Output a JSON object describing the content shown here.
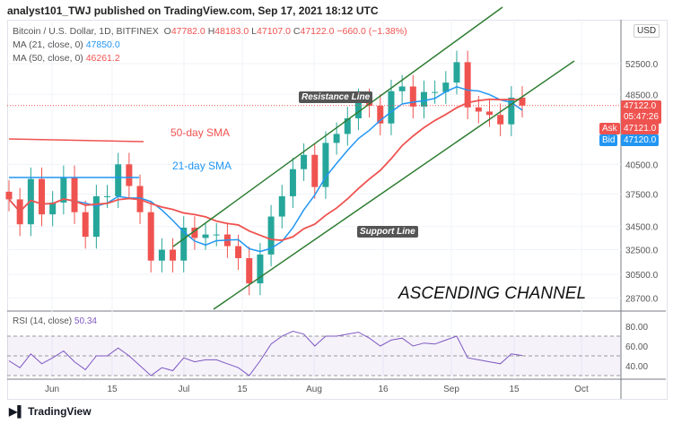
{
  "header": {
    "publisher": "analyst101_TWJ published on TradingView.com, Sep 17, 2021 18:12 UTC"
  },
  "legend": {
    "symbol": "Bitcoin / U.S. Dollar, 1D, BITFINEX",
    "o": "47782.0",
    "h": "48183.0",
    "l": "47107.0",
    "c": "47122.0",
    "change": "−660.0 (−1.38%)",
    "ma21_label": "MA (21, close, 0)",
    "ma21_value": "47850.0",
    "ma50_label": "MA (50, close, 0)",
    "ma50_value": "46261.2",
    "rsi_label": "RSI (14, close)",
    "rsi_value": "50.34"
  },
  "annotations": {
    "sma50": "50-day SMA",
    "sma21": "21-day SMA",
    "resistance": "Resistance Line",
    "support": "Support Line",
    "channel": "ASCENDING CHANNEL"
  },
  "price_axis": {
    "currency": "USD",
    "ticks": [
      "52500.0",
      "48500.0",
      "40500.0",
      "37500.0",
      "34500.0",
      "32500.0",
      "30500.0",
      "28700.0"
    ],
    "last": "47122.0",
    "countdown": "05:47:26",
    "ask_label": "Ask",
    "ask": "47121.0",
    "bid_label": "Bid",
    "bid": "47120.0",
    "scale": "log"
  },
  "rsi_axis": {
    "ticks": [
      "80.00",
      "60.00",
      "40.00"
    ]
  },
  "time_axis": [
    "Jun",
    "15",
    "Jul",
    "15",
    "Aug",
    "16",
    "Sep",
    "15",
    "Oct"
  ],
  "colors": {
    "up": "#26a69a",
    "down": "#ef5350",
    "ma21": "#2196f3",
    "ma50": "#ef5350",
    "channel": "#2e7d32",
    "rsi": "#7e57c2"
  },
  "chart_data": {
    "type": "candlestick",
    "closes": [
      37000,
      34700,
      39000,
      35600,
      36700,
      39200,
      35800,
      33600,
      37300,
      37300,
      40500,
      38300,
      35800,
      31600,
      32500,
      31600,
      34400,
      33500,
      33800,
      33800,
      32800,
      31800,
      29800,
      32100,
      35400,
      37300,
      40000,
      41500,
      38200,
      42800,
      43800,
      45600,
      47800,
      47100,
      45000,
      48900,
      49500,
      47000,
      48800,
      48800,
      50000,
      52700,
      46900,
      46400,
      46000,
      44900,
      48100,
      47122
    ],
    "rsi": [
      45,
      38,
      52,
      42,
      48,
      55,
      44,
      36,
      50,
      50,
      58,
      50,
      40,
      30,
      38,
      35,
      48,
      44,
      46,
      46,
      42,
      38,
      30,
      45,
      62,
      70,
      75,
      72,
      60,
      70,
      70,
      72,
      74,
      68,
      60,
      66,
      68,
      60,
      63,
      62,
      66,
      70,
      48,
      46,
      44,
      42,
      52,
      50.34
    ],
    "watermark": "TradingView"
  },
  "footer": {
    "brand": "TradingView"
  }
}
